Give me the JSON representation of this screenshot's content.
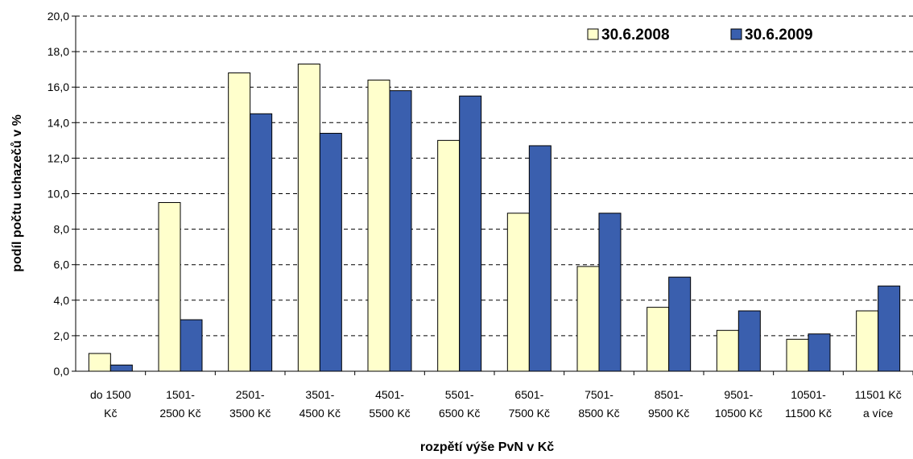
{
  "chart_data": {
    "type": "bar",
    "title": "",
    "xlabel": "rozpětí výše PvN v Kč",
    "ylabel": "podíl počtu uchazečů v %",
    "ylim": [
      0,
      20
    ],
    "ytick_step": 2,
    "ytick_labels": [
      "0,0",
      "2,0",
      "4,0",
      "6,0",
      "8,0",
      "10,0",
      "12,0",
      "14,0",
      "16,0",
      "18,0",
      "20,0"
    ],
    "grid": true,
    "legend_position": "top-right",
    "categories": [
      [
        "do 1500",
        "Kč"
      ],
      [
        "1501-",
        "2500 Kč"
      ],
      [
        "2501-",
        "3500 Kč"
      ],
      [
        "3501-",
        "4500 Kč"
      ],
      [
        "4501-",
        "5500 Kč"
      ],
      [
        "5501-",
        "6500 Kč"
      ],
      [
        "6501-",
        "7500 Kč"
      ],
      [
        "7501-",
        "8500 Kč"
      ],
      [
        "8501-",
        "9500 Kč"
      ],
      [
        "9501-",
        "10500 Kč"
      ],
      [
        "10501-",
        "11500 Kč"
      ],
      [
        "11501 Kč",
        "a více"
      ]
    ],
    "series": [
      {
        "name": "30.6.2008",
        "color": "#FFFFCC",
        "values": [
          1.0,
          9.5,
          16.8,
          17.3,
          16.4,
          13.0,
          8.9,
          5.9,
          3.6,
          2.3,
          1.8,
          3.4
        ]
      },
      {
        "name": "30.6.2009",
        "color": "#3A5FAE",
        "values": [
          0.35,
          2.9,
          14.5,
          13.4,
          15.8,
          15.5,
          12.7,
          8.9,
          5.3,
          3.4,
          2.1,
          4.8
        ]
      }
    ]
  }
}
